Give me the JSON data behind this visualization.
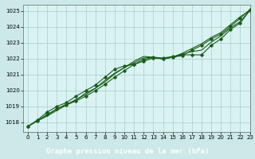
{
  "xlabel": "Graphe pression niveau de la mer (hPa)",
  "bg_color": "#cce8e8",
  "plot_bg_color": "#d9f2f2",
  "grid_color": "#aacece",
  "line_color": "#1a5c1a",
  "xlabel_bg": "#1a5c1a",
  "xlabel_fg": "#ffffff",
  "xlim": [
    -0.5,
    23
  ],
  "ylim": [
    1017.4,
    1025.4
  ],
  "yticks": [
    1018,
    1019,
    1020,
    1021,
    1022,
    1023,
    1024,
    1025
  ],
  "xticks": [
    0,
    1,
    2,
    3,
    4,
    5,
    6,
    7,
    8,
    9,
    10,
    11,
    12,
    13,
    14,
    15,
    16,
    17,
    18,
    19,
    20,
    21,
    22,
    23
  ],
  "lines": [
    [
      1017.75,
      1018.1,
      1018.5,
      1018.85,
      1019.1,
      1019.35,
      1019.65,
      1020.0,
      1020.4,
      1020.85,
      1021.25,
      1021.65,
      1021.85,
      1022.05,
      1022.0,
      1022.1,
      1022.2,
      1022.55,
      1022.85,
      1023.25,
      1023.55,
      1024.05,
      1024.55,
      1025.1
    ],
    [
      1017.75,
      1018.1,
      1018.4,
      1018.75,
      1019.1,
      1019.45,
      1019.75,
      1020.15,
      1020.55,
      1021.05,
      1021.45,
      1021.85,
      1022.15,
      1022.1,
      1022.0,
      1022.1,
      1022.35,
      1022.65,
      1022.95,
      1023.35,
      1023.65,
      1024.15,
      1024.65,
      1025.05
    ],
    [
      1017.75,
      1018.15,
      1018.65,
      1019.0,
      1019.25,
      1019.65,
      1020.0,
      1020.35,
      1020.85,
      1021.35,
      1021.55,
      1021.65,
      1021.95,
      1022.1,
      1022.05,
      1022.15,
      1022.25,
      1022.25,
      1022.25,
      1022.85,
      1023.25,
      1023.85,
      1024.25,
      1025.05
    ],
    [
      1017.75,
      1018.1,
      1018.45,
      1018.85,
      1019.15,
      1019.4,
      1019.85,
      1020.15,
      1020.65,
      1021.1,
      1021.45,
      1021.75,
      1022.05,
      1022.1,
      1022.0,
      1022.1,
      1022.3,
      1022.45,
      1022.55,
      1023.05,
      1023.45,
      1023.95,
      1024.35,
      1025.05
    ]
  ],
  "marker_lines": [
    0,
    2
  ],
  "marker": "D",
  "markersize": 1.8,
  "linewidth": 0.8,
  "tick_fontsize": 5.0,
  "xlabel_fontsize": 6.5
}
